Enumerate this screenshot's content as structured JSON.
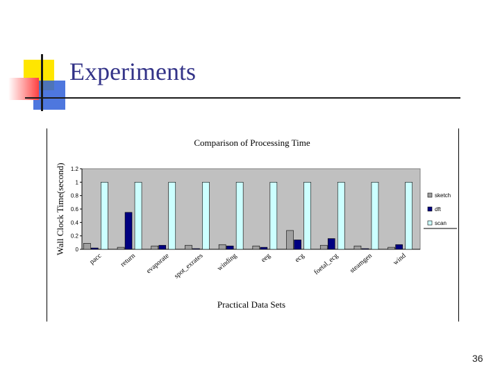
{
  "slide": {
    "title": "Experiments",
    "page_number": "36"
  },
  "colors": {
    "plot_bg": "#c0c0c0",
    "sketch": "#a0a0a0",
    "dft": "#000080",
    "scan": "#ccffff"
  },
  "chart_data": {
    "type": "bar",
    "title": "Comparison of Processing Time",
    "xlabel": "Practical Data Sets",
    "ylabel": "Wall Clock Time(second)",
    "ylim": [
      0,
      1.2
    ],
    "yticks": [
      "0",
      "0.2",
      "0.4",
      "0.6",
      "0.8",
      "1",
      "1.2"
    ],
    "ytick_values": [
      0,
      0.2,
      0.4,
      0.6,
      0.8,
      1.0,
      1.2
    ],
    "categories": [
      "pacc",
      "return",
      "evaporate",
      "spot_exrates",
      "winding",
      "eeg",
      "ecg",
      "foetal_ecg",
      "steamgen",
      "wind"
    ],
    "series": [
      {
        "name": "sketch",
        "values": [
          0.09,
          0.03,
          0.05,
          0.06,
          0.07,
          0.05,
          0.28,
          0.06,
          0.05,
          0.03
        ]
      },
      {
        "name": "dft",
        "values": [
          0.02,
          0.55,
          0.06,
          0.01,
          0.05,
          0.03,
          0.14,
          0.16,
          0.01,
          0.07
        ]
      },
      {
        "name": "scan",
        "values": [
          1.0,
          1.0,
          1.0,
          1.0,
          1.0,
          1.0,
          1.0,
          1.0,
          1.0,
          1.0
        ]
      }
    ],
    "legend": "right",
    "grid": false
  }
}
